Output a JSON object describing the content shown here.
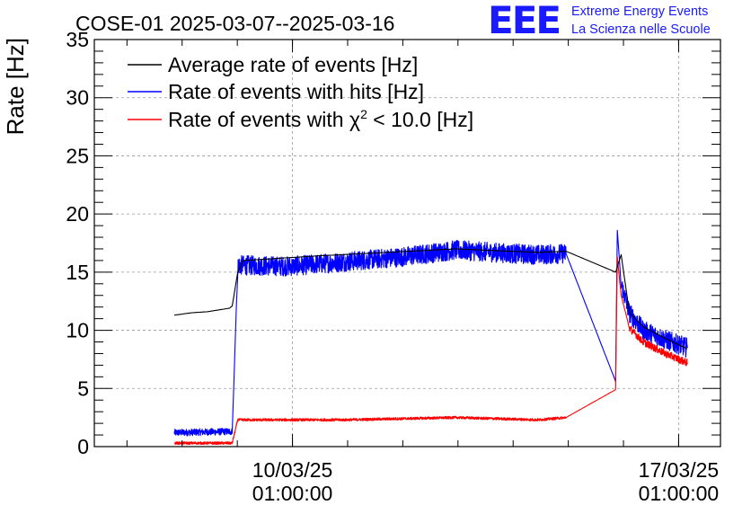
{
  "header": {
    "logo": "EEE",
    "org_line1": "Extreme Energy Events",
    "org_line2": "La Scienza nelle Scuole"
  },
  "chart_data": {
    "type": "line",
    "title": "COSE-01 2025-03-07--2025-03-16",
    "xlabel": "",
    "ylabel": "Rate [Hz]",
    "x_unit": "days since 2025-03-07 00:00",
    "xlim": [
      -0.55,
      10.8
    ],
    "ylim": [
      0,
      35
    ],
    "yticks": [
      0,
      5,
      10,
      15,
      20,
      25,
      30,
      35
    ],
    "xticks": [
      {
        "x": 3.0417,
        "line1": "10/03/25",
        "line2": "01:00:00"
      },
      {
        "x": 10.0417,
        "line1": "17/03/25",
        "line2": "01:00:00"
      }
    ],
    "grid": true,
    "legend_position": "top-left",
    "series": [
      {
        "name": "Average rate of events [Hz]",
        "label_main": "Average rate of events [Hz]",
        "color": "#000000",
        "points": [
          [
            0.9,
            11.3
          ],
          [
            1.2,
            11.5
          ],
          [
            1.5,
            11.6
          ],
          [
            1.9,
            11.9
          ],
          [
            1.95,
            12.1
          ],
          [
            2.05,
            15.0
          ],
          [
            2.15,
            16.0
          ],
          [
            3.5,
            16.4
          ],
          [
            6.0,
            17.0
          ],
          [
            7.5,
            16.7
          ],
          [
            8.0,
            16.8
          ],
          [
            8.9,
            15.0
          ],
          [
            9.0,
            16.5
          ],
          [
            9.15,
            11.5
          ],
          [
            9.4,
            10.3
          ],
          [
            9.8,
            9.3
          ],
          [
            10.2,
            8.4
          ]
        ],
        "noise": 0.0
      },
      {
        "name": "Rate of events with hits [Hz]",
        "label_main": "Rate of events with hits [Hz]",
        "color": "#0000ff",
        "points": [
          [
            0.9,
            1.2
          ],
          [
            1.95,
            1.3
          ],
          [
            2.05,
            15.6
          ],
          [
            3.0,
            15.5
          ],
          [
            4.0,
            15.9
          ],
          [
            5.0,
            16.3
          ],
          [
            6.0,
            16.9
          ],
          [
            7.0,
            16.6
          ],
          [
            7.5,
            16.5
          ],
          [
            8.0,
            16.6
          ],
          [
            8.9,
            5.6
          ],
          [
            8.93,
            18.6
          ],
          [
            9.0,
            14.0
          ],
          [
            9.15,
            11.5
          ],
          [
            9.4,
            10.0
          ],
          [
            9.8,
            9.2
          ],
          [
            10.2,
            8.5
          ]
        ],
        "noise": 0.85
      },
      {
        "name": "Rate of events with χ² < 10.0 [Hz]",
        "label_main": "Rate of events with χ",
        "label_sup": "2",
        "label_rest": " < 10.0 [Hz]",
        "color": "#ff0000",
        "points": [
          [
            0.9,
            0.3
          ],
          [
            1.95,
            0.3
          ],
          [
            2.05,
            2.3
          ],
          [
            4.0,
            2.3
          ],
          [
            6.0,
            2.5
          ],
          [
            7.5,
            2.3
          ],
          [
            8.0,
            2.5
          ],
          [
            8.9,
            4.9
          ],
          [
            8.93,
            16.3
          ],
          [
            9.0,
            13.0
          ],
          [
            9.15,
            10.2
          ],
          [
            9.4,
            9.0
          ],
          [
            9.8,
            8.0
          ],
          [
            10.2,
            7.2
          ]
        ],
        "noise": 0.32
      }
    ]
  }
}
